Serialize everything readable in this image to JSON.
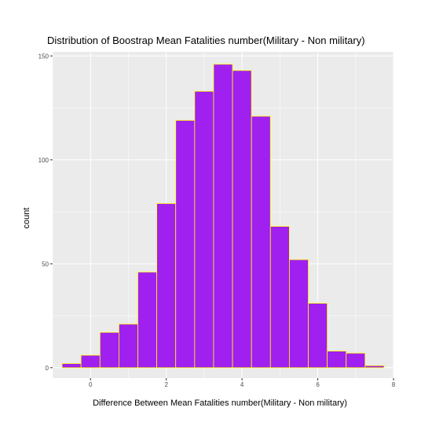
{
  "chart_data": {
    "type": "bar",
    "subtype": "histogram",
    "title": "Distribution of Boostrap Mean Fatalities number(Military - Non military)",
    "xlabel": "Difference Between Mean Fatalities number(Military - Non military)",
    "ylabel": "count",
    "xlim": [
      -1.0,
      8.0
    ],
    "ylim": [
      -5,
      152
    ],
    "x_ticks": [
      0,
      2,
      4,
      6,
      8
    ],
    "y_ticks": [
      0,
      50,
      100,
      150
    ],
    "bin_width": 0.5,
    "bins": [
      {
        "x_start": -0.75,
        "x_end": -0.25,
        "count": 2
      },
      {
        "x_start": -0.25,
        "x_end": 0.25,
        "count": 6
      },
      {
        "x_start": 0.25,
        "x_end": 0.75,
        "count": 17
      },
      {
        "x_start": 0.75,
        "x_end": 1.25,
        "count": 21
      },
      {
        "x_start": 1.25,
        "x_end": 1.75,
        "count": 46
      },
      {
        "x_start": 1.75,
        "x_end": 2.25,
        "count": 79
      },
      {
        "x_start": 2.25,
        "x_end": 2.75,
        "count": 119
      },
      {
        "x_start": 2.75,
        "x_end": 3.25,
        "count": 133
      },
      {
        "x_start": 3.25,
        "x_end": 3.75,
        "count": 146
      },
      {
        "x_start": 3.75,
        "x_end": 4.25,
        "count": 143
      },
      {
        "x_start": 4.25,
        "x_end": 4.75,
        "count": 121
      },
      {
        "x_start": 4.75,
        "x_end": 5.25,
        "count": 68
      },
      {
        "x_start": 5.25,
        "x_end": 5.75,
        "count": 52
      },
      {
        "x_start": 5.75,
        "x_end": 6.25,
        "count": 31
      },
      {
        "x_start": 6.25,
        "x_end": 6.75,
        "count": 8
      },
      {
        "x_start": 6.75,
        "x_end": 7.25,
        "count": 7
      },
      {
        "x_start": 7.25,
        "x_end": 7.75,
        "count": 1
      }
    ],
    "grid": true,
    "legend": "none",
    "colors": {
      "bar_fill": "#a020f0",
      "bar_outline": "#ffff00",
      "panel_background": "#ebebeb",
      "grid": "#ffffff"
    }
  }
}
